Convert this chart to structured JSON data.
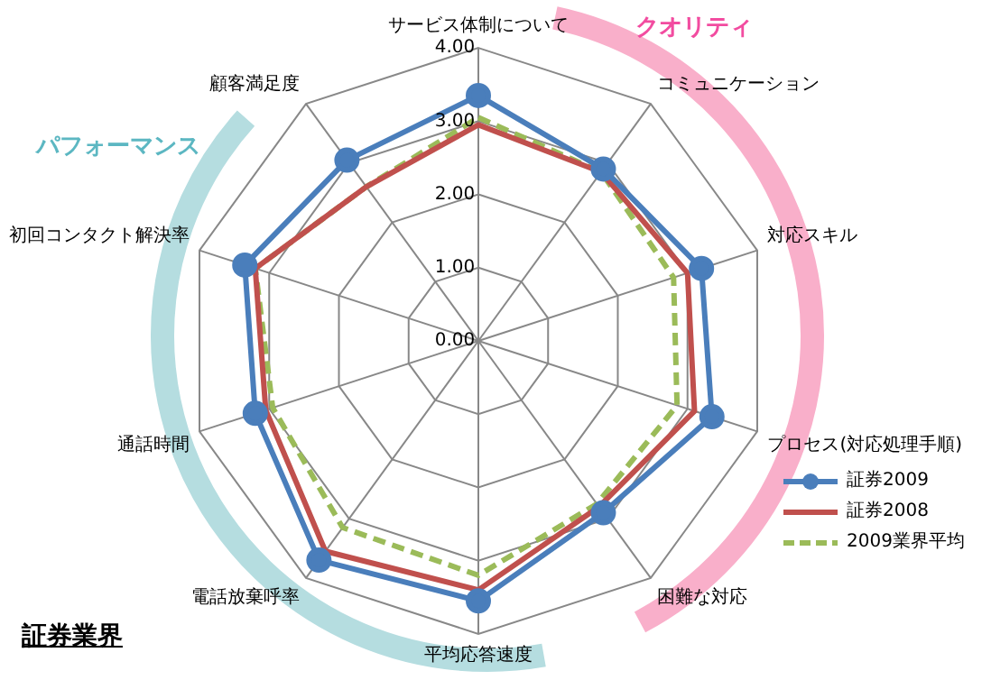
{
  "chart_data": {
    "type": "radar",
    "title": "証券業界",
    "categories": [
      "サービス体制について",
      "コミュニケーション",
      "対応スキル",
      "プロセス(対応処理手順)",
      "困難な対応",
      "平均応答速度",
      "電話放棄呼率",
      "通話時間",
      "初回コンタクト解決率",
      "顧客満足度"
    ],
    "series": [
      {
        "name": "証券2009",
        "color": "#4a7ebb",
        "marker": "circle",
        "line_style": "solid",
        "values": [
          3.35,
          2.9,
          3.2,
          3.35,
          2.9,
          3.55,
          3.7,
          3.2,
          3.35,
          3.05
        ]
      },
      {
        "name": "証券2008",
        "color": "#c0504d",
        "marker": "none",
        "line_style": "solid",
        "values": [
          2.95,
          2.85,
          3.0,
          3.1,
          2.8,
          3.4,
          3.55,
          3.05,
          3.2,
          2.6
        ]
      },
      {
        "name": "2009業界平均",
        "color": "#9bbb59",
        "marker": "none",
        "line_style": "dashed",
        "values": [
          3.05,
          2.85,
          2.8,
          2.85,
          2.75,
          3.2,
          3.15,
          2.95,
          3.2,
          2.6
        ]
      }
    ],
    "ylim": [
      0,
      4
    ],
    "yticks": [
      {
        "value": 0,
        "label": "0.00"
      },
      {
        "value": 1,
        "label": "1.00"
      },
      {
        "value": 2,
        "label": "2.00"
      },
      {
        "value": 3,
        "label": "3.00"
      },
      {
        "value": 4,
        "label": "4.00"
      }
    ],
    "grid": true,
    "legend": "bottom right",
    "annotations": [
      "クオリティ",
      "パフォーマンス"
    ]
  }
}
